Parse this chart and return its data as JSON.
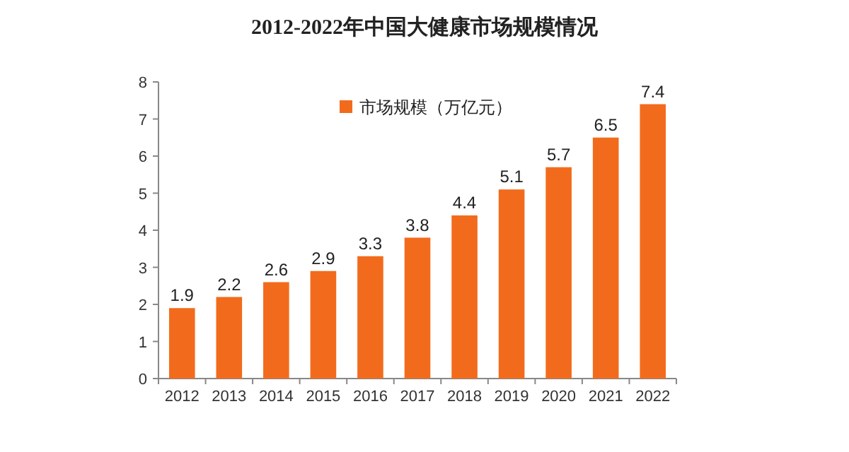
{
  "chart_data": {
    "type": "bar",
    "title": "2012-2022年中国大健康市场规模情况",
    "categories": [
      "2012",
      "2013",
      "2014",
      "2015",
      "2016",
      "2017",
      "2018",
      "2019",
      "2020",
      "2021",
      "2022"
    ],
    "series": [
      {
        "name": "市场规模（万亿元）",
        "color": "#f26b1d",
        "values": [
          1.9,
          2.2,
          2.6,
          2.9,
          3.3,
          3.8,
          4.4,
          5.1,
          5.7,
          6.5,
          7.4
        ]
      }
    ],
    "ylim": [
      0,
      8
    ],
    "yticks": [
      0,
      1,
      2,
      3,
      4,
      5,
      6,
      7,
      8
    ],
    "data_labels": true,
    "legend": "top"
  }
}
